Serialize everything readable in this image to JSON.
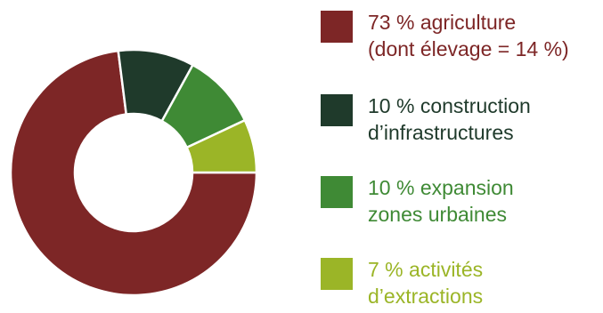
{
  "chart_data": {
    "type": "pie",
    "variant": "donut",
    "labels": [
      "agriculture",
      "construction d’infrastructures",
      "expansion zones urbaines",
      "activités d’extractions"
    ],
    "values": [
      73,
      10,
      10,
      7
    ],
    "unit": "%",
    "colors": [
      "#7d2626",
      "#1f3a2b",
      "#3f8a35",
      "#9bb527"
    ],
    "legend_position": "right"
  },
  "legend": [
    {
      "line1": "73 % agriculture",
      "line2": "(dont élevage = 14 %)",
      "color": "#7d2626",
      "text_color": "#7d2626"
    },
    {
      "line1": "10 % construction",
      "line2": "d’infrastructures",
      "color": "#1f3a2b",
      "text_color": "#1f3a2b"
    },
    {
      "line1": "10 % expansion",
      "line2": "zones urbaines",
      "color": "#3f8a35",
      "text_color": "#3f8a35"
    },
    {
      "line1": "7 % activités",
      "line2": "d’extractions",
      "color": "#9bb527",
      "text_color": "#9bb527"
    }
  ]
}
